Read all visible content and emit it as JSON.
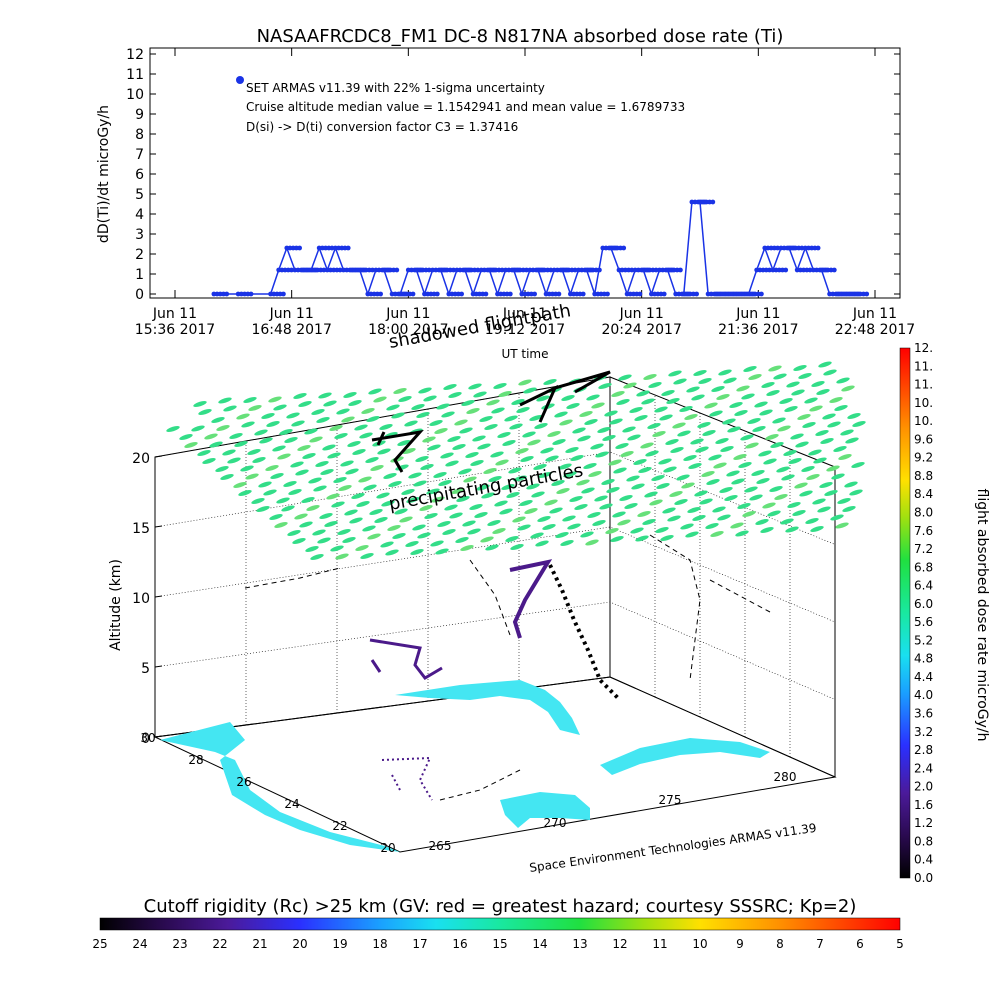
{
  "top_chart": {
    "title": "NASAAFRCDC8_FM1 DC-8   N817NA absorbed dose rate (Ti)",
    "ylabel": "dD(Ti)/dt microGy/h",
    "xlabel": "UT time",
    "legend_lines": [
      "SET ARMAS v11.39 with 22% 1-sigma uncertainty",
      "Cruise altitude median value = 1.1542941 and mean value = 1.6789733",
      "D(si) -> D(ti) conversion factor C3 = 1.37416"
    ],
    "series_color": "#1a33e6",
    "y_ticks": [
      "0",
      "1",
      "2",
      "3",
      "4",
      "5",
      "6",
      "7",
      "8",
      "9",
      "10",
      "11",
      "12"
    ],
    "x_ticks": [
      {
        "l1": "Jun 11",
        "l2": "15:36 2017"
      },
      {
        "l1": "Jun 11",
        "l2": "16:48 2017"
      },
      {
        "l1": "Jun 11",
        "l2": "18:00 2017"
      },
      {
        "l1": "Jun 11",
        "l2": "19:12 2017"
      },
      {
        "l1": "Jun 11",
        "l2": "20:24 2017"
      },
      {
        "l1": "Jun 11",
        "l2": "21:36 2017"
      },
      {
        "l1": "Jun 11",
        "l2": "22:48 2017"
      }
    ]
  },
  "chart_data": [
    {
      "type": "line",
      "title": "NASAAFRCDC8_FM1 DC-8   N817NA absorbed dose rate (Ti)",
      "xlabel": "UT time",
      "ylabel": "dD(Ti)/dt microGy/h",
      "xlim": [
        "2017-06-11 15:36",
        "2017-06-11 22:48"
      ],
      "ylim": [
        0,
        12
      ],
      "series": [
        {
          "x": [
            "16:00",
            "16:15",
            "16:35",
            "16:40",
            "16:45",
            "16:50",
            "16:55",
            "17:00",
            "17:05",
            "17:10",
            "17:15",
            "17:20",
            "17:25",
            "17:30",
            "17:35",
            "17:40",
            "17:45",
            "17:50",
            "17:55",
            "18:00",
            "18:05",
            "18:10",
            "18:15",
            "18:20",
            "18:25",
            "18:30",
            "18:35",
            "18:40",
            "18:45",
            "18:50",
            "18:55",
            "19:00",
            "19:05",
            "19:10",
            "19:15",
            "19:20",
            "19:25",
            "19:30",
            "19:35",
            "19:40",
            "19:45",
            "19:50",
            "19:55",
            "20:00",
            "20:05",
            "20:10",
            "20:15",
            "20:20",
            "20:25",
            "20:30",
            "20:35",
            "20:40",
            "20:45",
            "20:50",
            "20:55",
            "21:00",
            "21:05",
            "21:10",
            "21:15",
            "21:20",
            "21:25",
            "21:30",
            "21:35",
            "21:40",
            "21:45",
            "21:50",
            "21:55",
            "22:00",
            "22:05",
            "22:10",
            "22:15",
            "22:20",
            "22:25",
            "22:30",
            "22:35"
          ],
          "values": [
            0,
            0,
            0,
            1.2,
            2.3,
            1.2,
            1.2,
            1.2,
            2.3,
            1.2,
            2.3,
            1.2,
            1.2,
            1.2,
            0,
            1.2,
            1.2,
            0,
            0,
            1.2,
            1.2,
            0,
            1.2,
            1.2,
            0,
            1.2,
            1.2,
            0,
            1.2,
            1.2,
            0,
            1.2,
            1.2,
            0,
            1.2,
            1.2,
            0,
            1.2,
            1.2,
            0,
            1.2,
            1.2,
            0,
            2.3,
            2.3,
            1.2,
            0,
            1.2,
            1.2,
            0,
            1.2,
            1.2,
            0,
            0,
            4.6,
            4.6,
            0,
            0,
            0,
            0,
            0,
            0,
            1.2,
            2.3,
            1.2,
            2.3,
            2.3,
            1.2,
            2.3,
            1.2,
            1.2,
            0,
            0,
            0,
            0
          ]
        }
      ]
    },
    {
      "type": "scatter",
      "title": "",
      "xlabel": "",
      "ylabel": "Altitude (km)",
      "z_ticks": [
        "0",
        "5",
        "10",
        "15",
        "20"
      ],
      "lon_ticks": [
        "265",
        "270",
        "275",
        "280"
      ],
      "lat_ticks": [
        "20",
        "22",
        "24",
        "26",
        "28",
        "30"
      ],
      "annotations": [
        "shadowed flightpath",
        "precipitating particles",
        "Space Environment Technologies ARMAS v11.39"
      ]
    }
  ],
  "right_colorbar": {
    "label": "flight absorbed dose rate microGy/h",
    "ticks": [
      "0.0",
      "0.4",
      "0.8",
      "1.2",
      "1.6",
      "2.0",
      "2.4",
      "2.8",
      "3.2",
      "3.6",
      "4.0",
      "4.4",
      "4.8",
      "5.2",
      "5.6",
      "6.0",
      "6.4",
      "6.8",
      "7.2",
      "7.6",
      "8.0",
      "8.4",
      "8.8",
      "9.2",
      "9.6",
      "10.",
      "10.",
      "11.",
      "11.",
      "12."
    ]
  },
  "bottom_colorbar": {
    "label": "Cutoff rigidity (Rc) >25 km (GV: red = greatest hazard; courtesy SSSRC; Kp=2)",
    "ticks": [
      "25",
      "24",
      "23",
      "22",
      "21",
      "20",
      "19",
      "18",
      "17",
      "16",
      "15",
      "14",
      "13",
      "12",
      "11",
      "10",
      "9",
      "8",
      "7",
      "6",
      "5"
    ]
  },
  "colors": {
    "land_water": "#44e6f2",
    "green_cloud": "#33dd88",
    "flight_black": "#000000",
    "flight_purple": "#4b1a8a",
    "series": "#1a33e6"
  }
}
